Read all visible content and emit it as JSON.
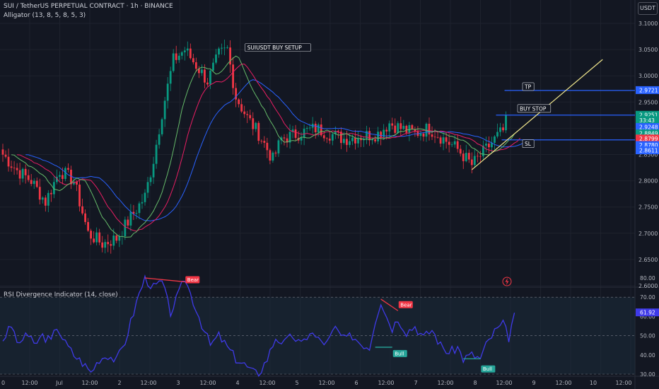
{
  "header": {
    "symbol_line": "SUI / TetherUS PERPETUAL CONTRACT · 1h · BINANCE",
    "indicator_line": "Alligator (13, 8, 5, 8, 5, 3)",
    "rsi_title": "RSI Divergence Indicator (14, close)",
    "currency_button": "USDT"
  },
  "colors": {
    "background": "#131722",
    "candle_up": "#089981",
    "candle_down": "#f23645",
    "jaw": "#2962ff",
    "teeth": "#e91e63",
    "lips": "#66bb6a",
    "rsi_line": "#3f3ae8",
    "level_line": "#2962ff",
    "trendline": "#f0e68c",
    "bear": "#f23645",
    "bull": "#26a69a"
  },
  "chart_data": [
    {
      "type": "candlestick",
      "title": "SUI / TetherUS PERPETUAL CONTRACT · 1h · BINANCE",
      "price_axis_ticks": [
        "3.1000",
        "3.0500",
        "3.0000",
        "2.9500",
        "2.9000",
        "2.8500",
        "2.8000",
        "2.7500",
        "2.7000",
        "2.6500",
        "2.6000"
      ],
      "ylim": [
        2.6,
        3.1
      ],
      "time_axis_ticks": [
        "0",
        "12:00",
        "Jul",
        "12:00",
        "2",
        "12:00",
        "3",
        "12:00",
        "4",
        "12:00",
        "5",
        "12:00",
        "6",
        "12:00",
        "7",
        "12:00",
        "8",
        "12:00",
        "9",
        "12:00",
        "10",
        "12:00",
        "12:00"
      ],
      "price_anchors": [
        [
          0,
          2.85
        ],
        [
          5,
          2.82
        ],
        [
          10,
          2.8
        ],
        [
          15,
          2.76
        ],
        [
          20,
          2.82
        ],
        [
          25,
          2.8
        ],
        [
          30,
          2.7
        ],
        [
          35,
          2.68
        ],
        [
          40,
          2.69
        ],
        [
          45,
          2.73
        ],
        [
          50,
          2.77
        ],
        [
          53,
          2.84
        ],
        [
          56,
          2.93
        ],
        [
          60,
          3.03
        ],
        [
          64,
          3.05
        ],
        [
          68,
          3.02
        ],
        [
          72,
          2.99
        ],
        [
          76,
          3.04
        ],
        [
          79,
          3.05
        ],
        [
          82,
          2.96
        ],
        [
          86,
          2.92
        ],
        [
          90,
          2.89
        ],
        [
          95,
          2.84
        ],
        [
          98,
          2.88
        ],
        [
          104,
          2.89
        ],
        [
          110,
          2.9
        ],
        [
          115,
          2.89
        ],
        [
          120,
          2.88
        ],
        [
          126,
          2.885
        ],
        [
          132,
          2.89
        ],
        [
          136,
          2.91
        ],
        [
          140,
          2.9
        ],
        [
          145,
          2.89
        ],
        [
          150,
          2.9
        ],
        [
          155,
          2.88
        ],
        [
          160,
          2.86
        ],
        [
          165,
          2.83
        ],
        [
          170,
          2.86
        ],
        [
          174,
          2.885
        ],
        [
          176,
          2.895
        ],
        [
          177,
          2.925
        ]
      ],
      "candle_count": 178,
      "annotations": [
        {
          "label": "SUIUSDT BUY SETUP",
          "at_index": 82,
          "price": 3.052
        },
        {
          "label": "TP",
          "price": 2.9721
        },
        {
          "label": "BUY STOP",
          "price": 2.9251
        },
        {
          "label": "SL",
          "price": 2.878
        }
      ],
      "trendline": [
        [
          165,
          2.8211
        ],
        [
          211,
          3.0311
        ]
      ],
      "price_labels": [
        {
          "text": "2.9721",
          "price": 2.9721,
          "color": "#2962ff"
        },
        {
          "text": "2.9251",
          "price": 2.9251,
          "color": "#089981"
        },
        {
          "text": "33:43",
          "price": 2.915,
          "color": "#089981"
        },
        {
          "text": "2.9248",
          "price": 2.9018,
          "color": "#2962ff"
        },
        {
          "text": "2.8849",
          "price": 2.8896,
          "color": "#089981"
        },
        {
          "text": "2.8799",
          "price": 2.8799,
          "color": "#f23645"
        },
        {
          "text": "2.8780",
          "price": 2.8675,
          "color": "#2962ff"
        },
        {
          "text": "2.8611",
          "price": 2.8573,
          "color": "#2962ff"
        }
      ],
      "level_lines": [
        {
          "price": 2.9721,
          "from_index": 177
        },
        {
          "price": 2.9251,
          "from_index": 174
        },
        {
          "price": 2.878,
          "from_index": 176
        }
      ]
    },
    {
      "type": "line",
      "title": "RSI Divergence Indicator (14, close)",
      "y_ticks": [
        "80.00",
        "70.00",
        "60.00",
        "50.00",
        "40.00",
        "30.00"
      ],
      "ylim": [
        28,
        82
      ],
      "band": [
        30,
        70
      ],
      "midline": 50,
      "current_value": "61.92",
      "anchors": [
        [
          0,
          48
        ],
        [
          3,
          55
        ],
        [
          6,
          44
        ],
        [
          8,
          52
        ],
        [
          11,
          45
        ],
        [
          14,
          50
        ],
        [
          17,
          47
        ],
        [
          19,
          55
        ],
        [
          22,
          46
        ],
        [
          25,
          40
        ],
        [
          28,
          36
        ],
        [
          31,
          31
        ],
        [
          34,
          38
        ],
        [
          37,
          40
        ],
        [
          40,
          37
        ],
        [
          43,
          47
        ],
        [
          46,
          62
        ],
        [
          48,
          72
        ],
        [
          50,
          80
        ],
        [
          53,
          75
        ],
        [
          56,
          78
        ],
        [
          59,
          62
        ],
        [
          62,
          72
        ],
        [
          64,
          80
        ],
        [
          67,
          68
        ],
        [
          70,
          56
        ],
        [
          73,
          45
        ],
        [
          76,
          50
        ],
        [
          79,
          44
        ],
        [
          82,
          38
        ],
        [
          85,
          35
        ],
        [
          88,
          31
        ],
        [
          90,
          30
        ],
        [
          93,
          38
        ],
        [
          96,
          49
        ],
        [
          99,
          46
        ],
        [
          102,
          50
        ],
        [
          105,
          45
        ],
        [
          108,
          52
        ],
        [
          111,
          48
        ],
        [
          114,
          46
        ],
        [
          117,
          54
        ],
        [
          120,
          48
        ],
        [
          123,
          50
        ],
        [
          126,
          46
        ],
        [
          129,
          44
        ],
        [
          131,
          58
        ],
        [
          133,
          68
        ],
        [
          135,
          60
        ],
        [
          137,
          54
        ],
        [
          139,
          59
        ],
        [
          142,
          52
        ],
        [
          145,
          55
        ],
        [
          148,
          49
        ],
        [
          151,
          53
        ],
        [
          154,
          45
        ],
        [
          157,
          41
        ],
        [
          160,
          44
        ],
        [
          162,
          38
        ],
        [
          165,
          40
        ],
        [
          168,
          38
        ],
        [
          170,
          45
        ],
        [
          173,
          52
        ],
        [
          176,
          56
        ],
        [
          178,
          49
        ],
        [
          180,
          61.92
        ]
      ],
      "divergence_markers": [
        {
          "label": "Bear",
          "kind": "bear",
          "line": [
            [
              50,
              80
            ],
            [
              64,
              78
            ]
          ],
          "label_at": [
            64,
            78
          ]
        },
        {
          "label": "Bull",
          "kind": "bull",
          "line": [
            [
              131,
              44
            ],
            [
              137,
              44
            ]
          ],
          "label_at": [
            137,
            44
          ]
        },
        {
          "label": "Bear",
          "kind": "bear",
          "line": [
            [
              133,
              69
            ],
            [
              139,
              63
            ]
          ],
          "label_at": [
            139,
            65
          ]
        },
        {
          "label": "Bull",
          "kind": "bull",
          "line": [
            [
              162,
              38
            ],
            [
              168,
              38
            ]
          ],
          "label_at": [
            168,
            36
          ]
        }
      ]
    }
  ]
}
